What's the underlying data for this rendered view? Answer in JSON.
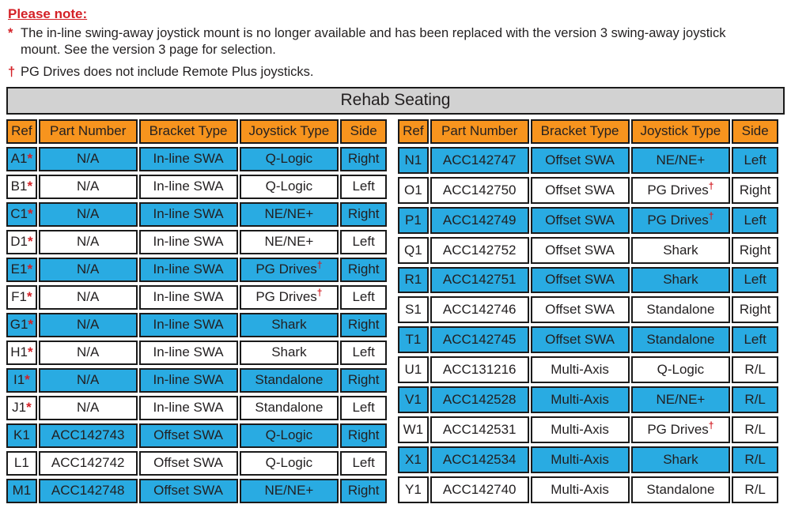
{
  "notes": {
    "title": "Please note:",
    "items": [
      {
        "marker": "*",
        "text": "The in-line swing-away joystick mount is no longer available and has been replaced with the version 3 swing-away joystick mount. See the version 3 page for selection."
      },
      {
        "marker": "†",
        "text": "PG Drives does not include Remote Plus joysticks."
      }
    ]
  },
  "table_title": "Rehab Seating",
  "columns": [
    "Ref",
    "Part Number",
    "Bracket Type",
    "Joystick Type",
    "Side"
  ],
  "left_rows": [
    {
      "ref": "A1",
      "star": true,
      "part": "N/A",
      "bracket": "In-line SWA",
      "joystick": "Q-Logic",
      "dagger": false,
      "side": "Right",
      "shaded": true
    },
    {
      "ref": "B1",
      "star": true,
      "part": "N/A",
      "bracket": "In-line SWA",
      "joystick": "Q-Logic",
      "dagger": false,
      "side": "Left",
      "shaded": false
    },
    {
      "ref": "C1",
      "star": true,
      "part": "N/A",
      "bracket": "In-line SWA",
      "joystick": "NE/NE+",
      "dagger": false,
      "side": "Right",
      "shaded": true
    },
    {
      "ref": "D1",
      "star": true,
      "part": "N/A",
      "bracket": "In-line SWA",
      "joystick": "NE/NE+",
      "dagger": false,
      "side": "Left",
      "shaded": false
    },
    {
      "ref": "E1",
      "star": true,
      "part": "N/A",
      "bracket": "In-line SWA",
      "joystick": "PG Drives",
      "dagger": true,
      "side": "Right",
      "shaded": true
    },
    {
      "ref": "F1",
      "star": true,
      "part": "N/A",
      "bracket": "In-line SWA",
      "joystick": "PG Drives",
      "dagger": true,
      "side": "Left",
      "shaded": false
    },
    {
      "ref": "G1",
      "star": true,
      "part": "N/A",
      "bracket": "In-line SWA",
      "joystick": "Shark",
      "dagger": false,
      "side": "Right",
      "shaded": true
    },
    {
      "ref": "H1",
      "star": true,
      "part": "N/A",
      "bracket": "In-line SWA",
      "joystick": "Shark",
      "dagger": false,
      "side": "Left",
      "shaded": false
    },
    {
      "ref": "I1",
      "star": true,
      "part": "N/A",
      "bracket": "In-line SWA",
      "joystick": "Standalone",
      "dagger": false,
      "side": "Right",
      "shaded": true
    },
    {
      "ref": "J1",
      "star": true,
      "part": "N/A",
      "bracket": "In-line SWA",
      "joystick": "Standalone",
      "dagger": false,
      "side": "Left",
      "shaded": false
    },
    {
      "ref": "K1",
      "star": false,
      "part": "ACC142743",
      "bracket": "Offset SWA",
      "joystick": "Q-Logic",
      "dagger": false,
      "side": "Right",
      "shaded": true
    },
    {
      "ref": "L1",
      "star": false,
      "part": "ACC142742",
      "bracket": "Offset SWA",
      "joystick": "Q-Logic",
      "dagger": false,
      "side": "Left",
      "shaded": false
    },
    {
      "ref": "M1",
      "star": false,
      "part": "ACC142748",
      "bracket": "Offset SWA",
      "joystick": "NE/NE+",
      "dagger": false,
      "side": "Right",
      "shaded": true
    }
  ],
  "right_rows": [
    {
      "ref": "N1",
      "star": false,
      "part": "ACC142747",
      "bracket": "Offset SWA",
      "joystick": "NE/NE+",
      "dagger": false,
      "side": "Left",
      "shaded": true
    },
    {
      "ref": "O1",
      "star": false,
      "part": "ACC142750",
      "bracket": "Offset SWA",
      "joystick": "PG Drives",
      "dagger": true,
      "side": "Right",
      "shaded": false
    },
    {
      "ref": "P1",
      "star": false,
      "part": "ACC142749",
      "bracket": "Offset SWA",
      "joystick": "PG Drives",
      "dagger": true,
      "side": "Left",
      "shaded": true
    },
    {
      "ref": "Q1",
      "star": false,
      "part": "ACC142752",
      "bracket": "Offset SWA",
      "joystick": "Shark",
      "dagger": false,
      "side": "Right",
      "shaded": false
    },
    {
      "ref": "R1",
      "star": false,
      "part": "ACC142751",
      "bracket": "Offset SWA",
      "joystick": "Shark",
      "dagger": false,
      "side": "Left",
      "shaded": true
    },
    {
      "ref": "S1",
      "star": false,
      "part": "ACC142746",
      "bracket": "Offset SWA",
      "joystick": "Standalone",
      "dagger": false,
      "side": "Right",
      "shaded": false
    },
    {
      "ref": "T1",
      "star": false,
      "part": "ACC142745",
      "bracket": "Offset SWA",
      "joystick": "Standalone",
      "dagger": false,
      "side": "Left",
      "shaded": true
    },
    {
      "ref": "U1",
      "star": false,
      "part": "ACC131216",
      "bracket": "Multi-Axis",
      "joystick": "Q-Logic",
      "dagger": false,
      "side": "R/L",
      "shaded": false
    },
    {
      "ref": "V1",
      "star": false,
      "part": "ACC142528",
      "bracket": "Multi-Axis",
      "joystick": "NE/NE+",
      "dagger": false,
      "side": "R/L",
      "shaded": true
    },
    {
      "ref": "W1",
      "star": false,
      "part": "ACC142531",
      "bracket": "Multi-Axis",
      "joystick": "PG Drives",
      "dagger": true,
      "side": "R/L",
      "shaded": false
    },
    {
      "ref": "X1",
      "star": false,
      "part": "ACC142534",
      "bracket": "Multi-Axis",
      "joystick": "Shark",
      "dagger": false,
      "side": "R/L",
      "shaded": true
    },
    {
      "ref": "Y1",
      "star": false,
      "part": "ACC142740",
      "bracket": "Multi-Axis",
      "joystick": "Standalone",
      "dagger": false,
      "side": "R/L",
      "shaded": false
    }
  ],
  "colors": {
    "header_orange": "#F7941E",
    "row_blue": "#29ABE2",
    "title_gray": "#D2D2D2",
    "note_red": "#D42127",
    "border_dark": "#1A1A1A",
    "text_dark": "#221F20"
  }
}
